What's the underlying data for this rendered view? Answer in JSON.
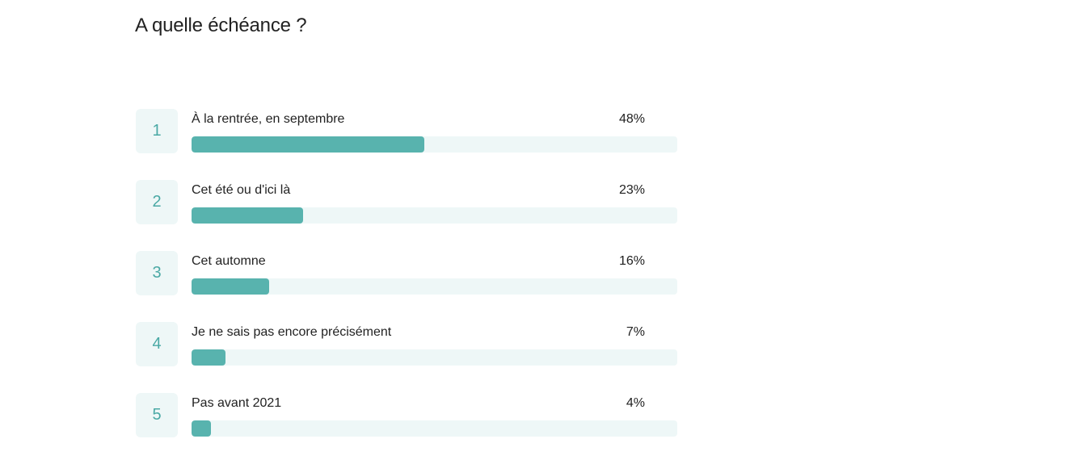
{
  "title": "A quelle échéance ?",
  "chart_data": {
    "type": "bar",
    "title": "A quelle échéance ?",
    "categories": [
      "À la rentrée, en septembre",
      "Cet été ou d'ici là",
      "Cet automne",
      "Je ne sais pas encore précisément",
      "Pas avant 2021"
    ],
    "values": [
      48,
      23,
      16,
      7,
      4
    ],
    "ylim": [
      0,
      100
    ],
    "grid": false,
    "legend": "none"
  },
  "answers": [
    {
      "rank": "1",
      "label": "À la rentrée, en septembre",
      "percent_label": "48%",
      "value": 48
    },
    {
      "rank": "2",
      "label": "Cet été ou d'ici là",
      "percent_label": "23%",
      "value": 23
    },
    {
      "rank": "3",
      "label": "Cet automne",
      "percent_label": "16%",
      "value": 16
    },
    {
      "rank": "4",
      "label": "Je ne sais pas encore précisément",
      "percent_label": "7%",
      "value": 7
    },
    {
      "rank": "5",
      "label": "Pas avant 2021",
      "percent_label": "4%",
      "value": 4
    }
  ],
  "colors": {
    "bar_fill": "#58b3ae",
    "bar_track": "#eef7f7",
    "rank_text": "#4aa9a5"
  }
}
